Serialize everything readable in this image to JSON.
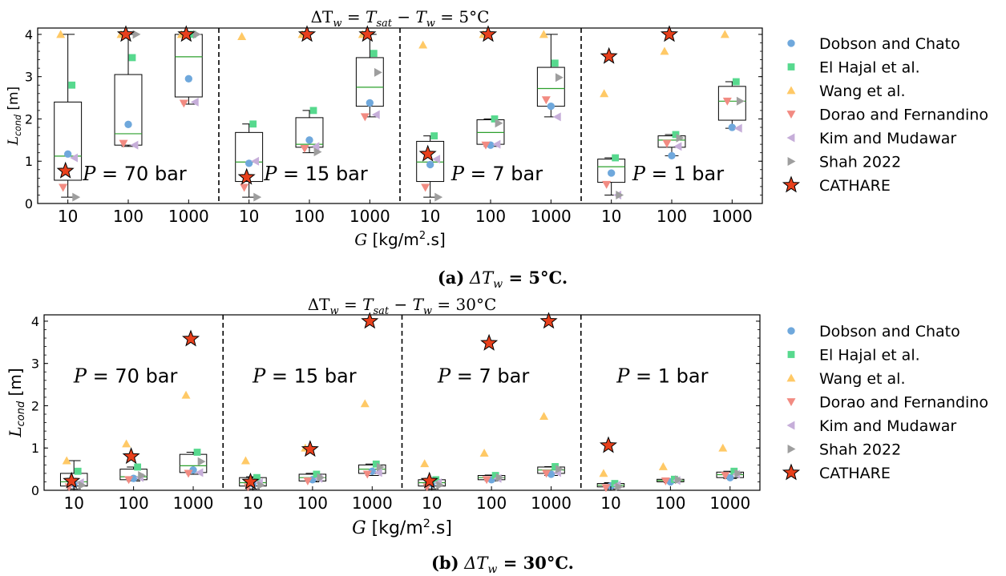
{
  "legend": [
    {
      "name": "Dobson and Chato",
      "color": "#6fa8dc",
      "marker": "circle"
    },
    {
      "name": "El Hajal et al.",
      "color": "#57d98e",
      "marker": "square"
    },
    {
      "name": "Wang et al.",
      "color": "#ffc966",
      "marker": "triangle-up"
    },
    {
      "name": "Dorao and Fernandino",
      "color": "#f28b82",
      "marker": "triangle-down"
    },
    {
      "name": "Kim and Mudawar",
      "color": "#c6aed9",
      "marker": "triangle-left"
    },
    {
      "name": "Shah 2022",
      "color": "#9e9e9e",
      "marker": "triangle-right"
    },
    {
      "name": "CATHARE",
      "color": "#e8401c",
      "marker": "star"
    }
  ],
  "chart_data": [
    {
      "type": "box",
      "title_prefix": "ΔT",
      "title_sub": "w",
      "title_mid": " = T",
      "title_sub2": "sat",
      "title_mid2": " − T",
      "title_sub3": "w",
      "title_suffix": " = 5°C",
      "ylabel_main": "L",
      "ylabel_sub": "cond",
      "ylabel_unit": " [m]",
      "xlabel_main": "G",
      "xlabel_unit": " [kg/m",
      "xlabel_sup": "2",
      "xlabel_end": ".s]",
      "caption_label": "(a)",
      "caption_main": " ΔT",
      "caption_sub": "w",
      "caption_end": " = 5°C.",
      "ylim": [
        0,
        4.15
      ],
      "yticks": [
        0,
        1,
        2,
        3,
        4
      ],
      "groups": [
        {
          "label": "P = 70 bar",
          "pressure": "70",
          "categories": [
            "10",
            "100",
            "1000"
          ],
          "boxes": [
            {
              "G": "10",
              "q1": 0.55,
              "median": 1.12,
              "q3": 2.4,
              "whislo": 0.15,
              "whishi": 4.0,
              "points": {
                "Dobson and Chato": 1.17,
                "El Hajal et al.": 2.8,
                "Wang et al.": 4.0,
                "Dorao and Fernandino": 0.38,
                "Kim and Mudawar": 1.08,
                "Shah 2022": 0.15
              },
              "cathare": 0.77
            },
            {
              "G": "100",
              "q1": 1.38,
              "median": 1.65,
              "q3": 3.05,
              "whislo": 1.35,
              "whishi": 4.0,
              "points": {
                "Dobson and Chato": 1.87,
                "El Hajal et al.": 3.45,
                "Wang et al.": 4.0,
                "Dorao and Fernandino": 1.42,
                "Kim and Mudawar": 1.38,
                "Shah 2022": 4.0
              },
              "cathare": 4.0
            },
            {
              "G": "1000",
              "q1": 2.52,
              "median": 3.47,
              "q3": 4.0,
              "whislo": 2.35,
              "whishi": 4.0,
              "points": {
                "Dobson and Chato": 2.95,
                "El Hajal et al.": 4.0,
                "Wang et al.": 4.0,
                "Dorao and Fernandino": 2.37,
                "Kim and Mudawar": 2.4,
                "Shah 2022": 4.0
              },
              "cathare": 4.0
            }
          ]
        },
        {
          "label": "P = 15 bar",
          "pressure": "15",
          "categories": [
            "10",
            "100",
            "1000"
          ],
          "boxes": [
            {
              "G": "10",
              "q1": 0.52,
              "median": 0.98,
              "q3": 1.68,
              "whislo": 0.15,
              "whishi": 1.88,
              "points": {
                "Dobson and Chato": 0.95,
                "El Hajal et al.": 1.88,
                "Wang et al.": 3.95,
                "Dorao and Fernandino": 0.38,
                "Kim and Mudawar": 1.0,
                "Shah 2022": 0.15
              },
              "cathare": 0.62
            },
            {
              "G": "100",
              "q1": 1.33,
              "median": 1.4,
              "q3": 2.03,
              "whislo": 1.2,
              "whishi": 2.2,
              "points": {
                "Dobson and Chato": 1.5,
                "El Hajal et al.": 2.2,
                "Wang et al.": 4.0,
                "Dorao and Fernandino": 1.3,
                "Kim and Mudawar": 1.35,
                "Shah 2022": 1.22
              },
              "cathare": 4.0
            },
            {
              "G": "1000",
              "q1": 2.3,
              "median": 2.75,
              "q3": 3.45,
              "whislo": 2.05,
              "whishi": 4.0,
              "points": {
                "Dobson and Chato": 2.38,
                "El Hajal et al.": 3.55,
                "Wang et al.": 4.0,
                "Dorao and Fernandino": 2.05,
                "Kim and Mudawar": 2.1,
                "Shah 2022": 3.1
              },
              "cathare": 4.0
            }
          ]
        },
        {
          "label": "P = 7 bar",
          "pressure": "7",
          "categories": [
            "10",
            "100",
            "1000"
          ],
          "boxes": [
            {
              "G": "10",
              "q1": 0.52,
              "median": 0.98,
              "q3": 1.47,
              "whislo": 0.15,
              "whishi": 1.6,
              "points": {
                "Dobson and Chato": 0.92,
                "El Hajal et al.": 1.6,
                "Wang et al.": 3.75,
                "Dorao and Fernandino": 0.38,
                "Kim and Mudawar": 1.05,
                "Shah 2022": 0.15
              },
              "cathare": 1.17
            },
            {
              "G": "100",
              "q1": 1.4,
              "median": 1.68,
              "q3": 1.98,
              "whislo": 1.35,
              "whishi": 2.0,
              "points": {
                "Dobson and Chato": 1.38,
                "El Hajal et al.": 2.0,
                "Wang et al.": 4.0,
                "Dorao and Fernandino": 1.38,
                "Kim and Mudawar": 1.4,
                "Shah 2022": 1.9
              },
              "cathare": 4.0
            },
            {
              "G": "1000",
              "q1": 2.3,
              "median": 2.72,
              "q3": 3.22,
              "whislo": 2.05,
              "whishi": 4.0,
              "points": {
                "Dobson and Chato": 2.3,
                "El Hajal et al.": 3.32,
                "Wang et al.": 4.0,
                "Dorao and Fernandino": 2.45,
                "Kim and Mudawar": 2.05,
                "Shah 2022": 2.98
              },
              "cathare": null
            }
          ]
        },
        {
          "label": "P = 1 bar",
          "pressure": "1",
          "categories": [
            "10",
            "100",
            "1000"
          ],
          "boxes": [
            {
              "G": "10",
              "q1": 0.5,
              "median": 0.87,
              "q3": 1.05,
              "whislo": 0.2,
              "whishi": 1.08,
              "points": {
                "Dobson and Chato": 0.72,
                "El Hajal et al.": 1.08,
                "Wang et al.": 2.6,
                "Dorao and Fernandino": 0.45,
                "Kim and Mudawar": 0.2,
                "Shah 2022": 0.2
              },
              "cathare": 3.48
            },
            {
              "G": "100",
              "q1": 1.33,
              "median": 1.5,
              "q3": 1.6,
              "whislo": 1.13,
              "whishi": 1.63,
              "points": {
                "Dobson and Chato": 1.13,
                "El Hajal et al.": 1.63,
                "Wang et al.": 3.6,
                "Dorao and Fernandino": 1.42,
                "Kim and Mudawar": 1.35,
                "Shah 2022": 1.55
              },
              "cathare": 4.0
            },
            {
              "G": "1000",
              "q1": 1.97,
              "median": 2.42,
              "q3": 2.77,
              "whislo": 1.78,
              "whishi": 2.88,
              "points": {
                "Dobson and Chato": 1.8,
                "El Hajal et al.": 2.88,
                "Wang et al.": 4.0,
                "Dorao and Fernandino": 2.42,
                "Kim and Mudawar": 1.78,
                "Shah 2022": 2.42
              },
              "cathare": null
            }
          ]
        }
      ]
    },
    {
      "type": "box",
      "title_prefix": "ΔT",
      "title_sub": "w",
      "title_mid": " = T",
      "title_sub2": "sat",
      "title_mid2": " − T",
      "title_sub3": "w",
      "title_suffix": " = 30°C",
      "ylabel_main": "L",
      "ylabel_sub": "cond",
      "ylabel_unit": " [m]",
      "xlabel_main": "G",
      "xlabel_unit": " [kg/m",
      "xlabel_sup": "2",
      "xlabel_end": ".s]",
      "caption_label": "(b)",
      "caption_main": " ΔT",
      "caption_sub": "w",
      "caption_end": " = 30°C.",
      "ylim": [
        0,
        4.15
      ],
      "yticks": [
        0,
        1,
        2,
        3,
        4
      ],
      "groups": [
        {
          "label": "P = 70 bar",
          "pressure": "70",
          "categories": [
            "10",
            "100",
            "1000"
          ],
          "boxes": [
            {
              "G": "10",
              "q1": 0.1,
              "median": 0.2,
              "q3": 0.4,
              "whislo": 0.03,
              "whishi": 0.7,
              "points": {
                "Dobson and Chato": 0.15,
                "El Hajal et al.": 0.45,
                "Wang et al.": 0.7,
                "Dorao and Fernandino": 0.08,
                "Kim and Mudawar": 0.18,
                "Shah 2022": 0.12
              },
              "cathare": 0.22
            },
            {
              "G": "100",
              "q1": 0.25,
              "median": 0.32,
              "q3": 0.5,
              "whislo": 0.22,
              "whishi": 0.55,
              "points": {
                "Dobson and Chato": 0.28,
                "El Hajal et al.": 0.55,
                "Wang et al.": 1.1,
                "Dorao and Fernandino": 0.25,
                "Kim and Mudawar": 0.3,
                "Shah 2022": 0.35
              },
              "cathare": 0.8
            },
            {
              "G": "1000",
              "q1": 0.42,
              "median": 0.58,
              "q3": 0.85,
              "whislo": 0.38,
              "whishi": 0.9,
              "points": {
                "Dobson and Chato": 0.48,
                "El Hajal et al.": 0.9,
                "Wang et al.": 2.25,
                "Dorao and Fernandino": 0.4,
                "Kim and Mudawar": 0.42,
                "Shah 2022": 0.68
              },
              "cathare": 3.58
            }
          ]
        },
        {
          "label": "P = 15 bar",
          "pressure": "15",
          "categories": [
            "10",
            "100",
            "1000"
          ],
          "boxes": [
            {
              "G": "10",
              "q1": 0.1,
              "median": 0.18,
              "q3": 0.3,
              "whislo": 0.03,
              "whishi": 0.32,
              "points": {
                "Dobson and Chato": 0.15,
                "El Hajal et al.": 0.3,
                "Wang et al.": 0.7,
                "Dorao and Fernandino": 0.08,
                "Kim and Mudawar": 0.18,
                "Shah 2022": 0.12
              },
              "cathare": 0.2
            },
            {
              "G": "100",
              "q1": 0.22,
              "median": 0.3,
              "q3": 0.38,
              "whislo": 0.2,
              "whishi": 0.4,
              "points": {
                "Dobson and Chato": 0.25,
                "El Hajal et al.": 0.38,
                "Wang et al.": 1.0,
                "Dorao and Fernandino": 0.22,
                "Kim and Mudawar": 0.28,
                "Shah 2022": 0.3
              },
              "cathare": 0.97
            },
            {
              "G": "1000",
              "q1": 0.4,
              "median": 0.5,
              "q3": 0.6,
              "whislo": 0.35,
              "whishi": 0.62,
              "points": {
                "Dobson and Chato": 0.45,
                "El Hajal et al.": 0.62,
                "Wang et al.": 2.05,
                "Dorao and Fernandino": 0.38,
                "Kim and Mudawar": 0.42,
                "Shah 2022": 0.55
              },
              "cathare": 4.0
            }
          ]
        },
        {
          "label": "P = 7 bar",
          "pressure": "7",
          "categories": [
            "10",
            "100",
            "1000"
          ],
          "boxes": [
            {
              "G": "10",
              "q1": 0.1,
              "median": 0.18,
              "q3": 0.25,
              "whislo": 0.03,
              "whishi": 0.28,
              "points": {
                "Dobson and Chato": 0.15,
                "El Hajal et al.": 0.25,
                "Wang et al.": 0.63,
                "Dorao and Fernandino": 0.08,
                "Kim and Mudawar": 0.18,
                "Shah 2022": 0.12
              },
              "cathare": 0.22
            },
            {
              "G": "100",
              "q1": 0.25,
              "median": 0.3,
              "q3": 0.35,
              "whislo": 0.22,
              "whishi": 0.36,
              "points": {
                "Dobson and Chato": 0.25,
                "El Hajal et al.": 0.35,
                "Wang et al.": 0.88,
                "Dorao and Fernandino": 0.25,
                "Kim and Mudawar": 0.28,
                "Shah 2022": 0.3
              },
              "cathare": 3.48
            },
            {
              "G": "1000",
              "q1": 0.4,
              "median": 0.48,
              "q3": 0.55,
              "whislo": 0.35,
              "whishi": 0.56,
              "points": {
                "Dobson and Chato": 0.38,
                "El Hajal et al.": 0.56,
                "Wang et al.": 1.75,
                "Dorao and Fernandino": 0.4,
                "Kim and Mudawar": 0.42,
                "Shah 2022": 0.5
              },
              "cathare": 4.0
            }
          ]
        },
        {
          "label": "P = 1 bar",
          "pressure": "1",
          "categories": [
            "10",
            "100",
            "1000"
          ],
          "boxes": [
            {
              "G": "10",
              "q1": 0.08,
              "median": 0.12,
              "q3": 0.16,
              "whislo": 0.03,
              "whishi": 0.18,
              "points": {
                "Dobson and Chato": 0.1,
                "El Hajal et al.": 0.16,
                "Wang et al.": 0.4,
                "Dorao and Fernandino": 0.06,
                "Kim and Mudawar": 0.12,
                "Shah 2022": 0.08
              },
              "cathare": 1.06
            },
            {
              "G": "100",
              "q1": 0.2,
              "median": 0.23,
              "q3": 0.26,
              "whislo": 0.18,
              "whishi": 0.27,
              "points": {
                "Dobson and Chato": 0.2,
                "El Hajal et al.": 0.26,
                "Wang et al.": 0.56,
                "Dorao and Fernandino": 0.22,
                "Kim and Mudawar": 0.23,
                "Shah 2022": 0.25
              },
              "cathare": null
            },
            {
              "G": "1000",
              "q1": 0.3,
              "median": 0.37,
              "q3": 0.43,
              "whislo": 0.28,
              "whishi": 0.45,
              "points": {
                "Dobson and Chato": 0.3,
                "El Hajal et al.": 0.45,
                "Wang et al.": 1.0,
                "Dorao and Fernandino": 0.35,
                "Kim and Mudawar": 0.38,
                "Shah 2022": 0.4
              },
              "cathare": null
            }
          ]
        }
      ]
    }
  ]
}
